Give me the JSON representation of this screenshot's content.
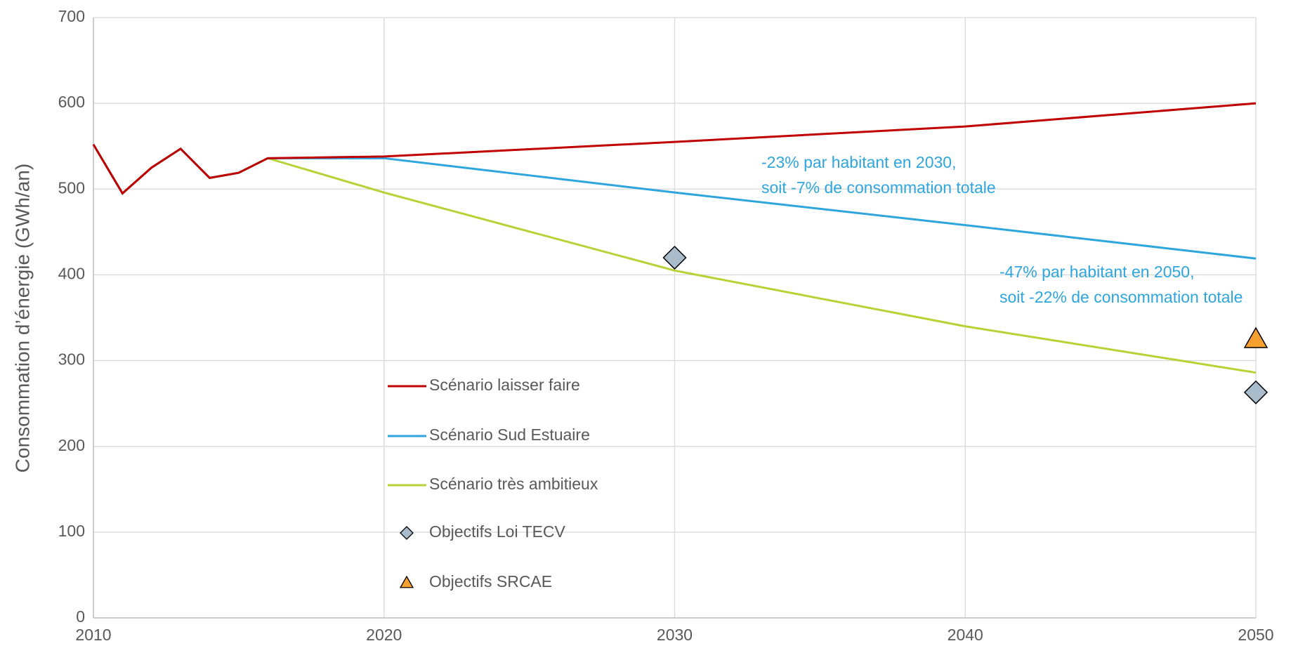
{
  "chart_data": {
    "type": "line",
    "ylabel": "Consommation d’énergie (GWh/an)",
    "xlim": [
      2010,
      2050
    ],
    "xticks": [
      2010,
      2020,
      2030,
      2040,
      2050
    ],
    "ylim": [
      0,
      700
    ],
    "yticks": [
      0,
      100,
      200,
      300,
      400,
      500,
      600,
      700
    ],
    "grid": true,
    "legend": "center",
    "series": [
      {
        "name": "Scénario laisser faire",
        "color": "#c00000",
        "kind": "line",
        "x": [
          2010,
          2011,
          2012,
          2013,
          2014,
          2015,
          2016,
          2020,
          2030,
          2040,
          2050
        ],
        "values": [
          552,
          495,
          525,
          547,
          513,
          519,
          536,
          538,
          555,
          573,
          600
        ]
      },
      {
        "name": "Scénario Sud Estuaire",
        "color": "#2ea6dd",
        "kind": "line",
        "x": [
          2010,
          2011,
          2012,
          2013,
          2014,
          2015,
          2016,
          2020,
          2030,
          2040,
          2050
        ],
        "values": [
          552,
          495,
          525,
          547,
          513,
          519,
          536,
          536,
          496,
          458,
          419
        ]
      },
      {
        "name": "Scénario très ambitieux",
        "color": "#b5d334",
        "kind": "line",
        "x": [
          2010,
          2011,
          2012,
          2013,
          2014,
          2015,
          2016,
          2020,
          2030,
          2040,
          2050
        ],
        "values": [
          552,
          495,
          525,
          547,
          513,
          519,
          536,
          496,
          405,
          340,
          286
        ]
      },
      {
        "name": "Objectifs Loi TECV",
        "color": "#a9bccb",
        "kind": "diamond",
        "x": [
          2030,
          2050
        ],
        "values": [
          420,
          263
        ]
      },
      {
        "name": "Objectifs SRCAE",
        "color": "#f5a031",
        "kind": "triangle",
        "x": [
          2050
        ],
        "values": [
          325
        ]
      }
    ],
    "annotations": [
      [
        "-23% par habitant en 2030,",
        "soit -7% de consommation totale"
      ],
      [
        "-47% par habitant en 2050,",
        "soit -22% de consommation totale"
      ]
    ]
  }
}
